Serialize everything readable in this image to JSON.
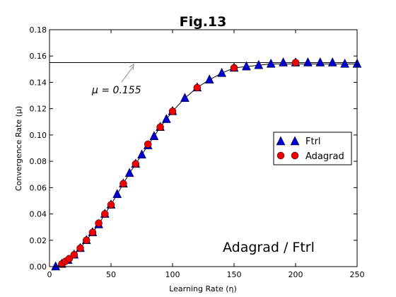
{
  "chart_data": {
    "type": "scatter",
    "title": "Fig.13",
    "xlabel": "Learning Rate (η)",
    "ylabel": "Convergence Rate (μ)",
    "xlim": [
      0,
      250
    ],
    "ylim": [
      0,
      0.18
    ],
    "xticks": [
      "0",
      "50",
      "100",
      "150",
      "200",
      "250"
    ],
    "yticks": [
      "0.00",
      "0.02",
      "0.04",
      "0.06",
      "0.08",
      "0.10",
      "0.12",
      "0.14",
      "0.16",
      "0.18"
    ],
    "grid": false,
    "legend_position": "center-right",
    "annotations": {
      "mu_label": "μ = 0.155",
      "corner_label": "Adagrad / Ftrl"
    },
    "reference_line": {
      "y": 0.155
    },
    "series": [
      {
        "name": "Ftrl",
        "marker": "triangle",
        "color": "#0000cc",
        "x": [
          5,
          10,
          15,
          20,
          25,
          30,
          35,
          40,
          45,
          50,
          55,
          60,
          65,
          70,
          75,
          80,
          85,
          90,
          95,
          100,
          110,
          120,
          130,
          140,
          150,
          160,
          170,
          180,
          190,
          200,
          210,
          220,
          230,
          240,
          250
        ],
        "y": [
          0.0,
          0.002,
          0.005,
          0.009,
          0.014,
          0.02,
          0.026,
          0.032,
          0.04,
          0.047,
          0.055,
          0.063,
          0.071,
          0.078,
          0.085,
          0.092,
          0.099,
          0.106,
          0.112,
          0.118,
          0.128,
          0.136,
          0.142,
          0.147,
          0.151,
          0.152,
          0.153,
          0.154,
          0.155,
          0.155,
          0.155,
          0.155,
          0.155,
          0.154,
          0.154
        ]
      },
      {
        "name": "Adagrad",
        "marker": "circle",
        "color": "#ee0000",
        "x": [
          10,
          13,
          16,
          20,
          25,
          30,
          35,
          40,
          45,
          50,
          60,
          70,
          80,
          90,
          100,
          120,
          150,
          200
        ],
        "y": [
          0.002,
          0.004,
          0.006,
          0.009,
          0.014,
          0.02,
          0.026,
          0.033,
          0.04,
          0.047,
          0.063,
          0.078,
          0.093,
          0.106,
          0.118,
          0.136,
          0.151,
          0.155
        ]
      }
    ],
    "fit_curve": {
      "x": [
        5,
        10,
        15,
        20,
        25,
        30,
        35,
        40,
        45,
        50,
        55,
        60,
        65,
        70,
        75,
        80,
        85,
        90,
        95,
        100,
        110,
        120,
        130,
        140,
        150,
        160,
        170,
        180,
        190,
        200,
        210,
        220,
        230,
        240,
        250
      ],
      "y": [
        0.0,
        0.002,
        0.005,
        0.009,
        0.014,
        0.02,
        0.026,
        0.032,
        0.04,
        0.047,
        0.055,
        0.063,
        0.071,
        0.078,
        0.085,
        0.092,
        0.099,
        0.106,
        0.112,
        0.118,
        0.128,
        0.136,
        0.142,
        0.147,
        0.151,
        0.152,
        0.153,
        0.154,
        0.154,
        0.154,
        0.154,
        0.154,
        0.154,
        0.154,
        0.154
      ]
    }
  }
}
